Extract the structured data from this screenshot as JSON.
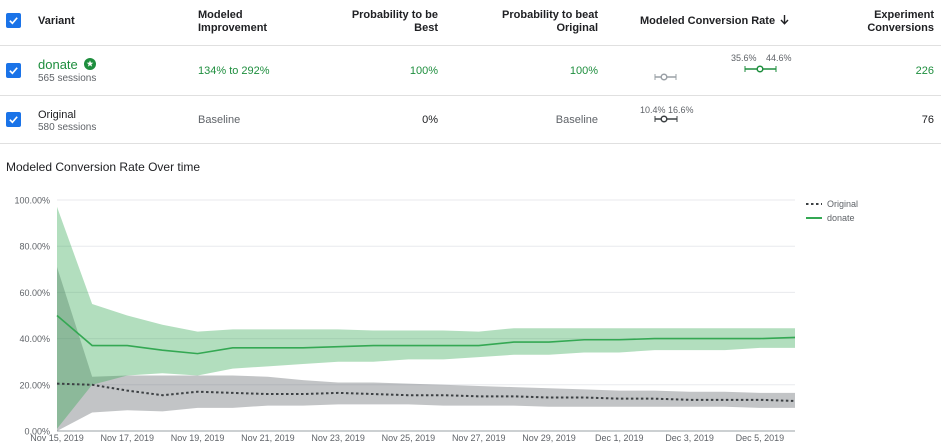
{
  "table": {
    "headers": {
      "variant": "Variant",
      "modeled_improvement_l1": "Modeled",
      "modeled_improvement_l2": "Improvement",
      "prob_best_l1": "Probability to be",
      "prob_best_l2": "Best",
      "prob_beat_l1": "Probability to beat",
      "prob_beat_l2": "Original",
      "modeled_rate": "Modeled Conversion Rate",
      "sort_icon": "arrow-down-icon",
      "conversions_l1": "Experiment",
      "conversions_l2": "Conversions"
    },
    "rows": [
      {
        "name": "donate",
        "sessions": "565 sessions",
        "badge_icon": "star-badge-icon",
        "improvement": "134% to 292%",
        "prob_best": "100%",
        "prob_beat": "100%",
        "ci_low": "35.6%",
        "ci_high": "44.6%",
        "conversions": "226"
      },
      {
        "name": "Original",
        "sessions": "580 sessions",
        "improvement": "Baseline",
        "prob_best": "0%",
        "prob_beat": "Baseline",
        "ci_low": "10.4%",
        "ci_high": "16.6%",
        "conversions": "76"
      }
    ]
  },
  "colors": {
    "accent_blue": "#1a73e8",
    "green": "#1e8e3e",
    "grey": "#5f6368"
  },
  "chart_data": {
    "type": "line",
    "title": "Modeled Conversion Rate Over time",
    "x": [
      "Nov 15, 2019",
      "Nov 16, 2019",
      "Nov 17, 2019",
      "Nov 18, 2019",
      "Nov 19, 2019",
      "Nov 20, 2019",
      "Nov 21, 2019",
      "Nov 22, 2019",
      "Nov 23, 2019",
      "Nov 24, 2019",
      "Nov 25, 2019",
      "Nov 26, 2019",
      "Nov 27, 2019",
      "Nov 28, 2019",
      "Nov 29, 2019",
      "Nov 30, 2019",
      "Dec 1, 2019",
      "Dec 2, 2019",
      "Dec 3, 2019",
      "Dec 4, 2019",
      "Dec 5, 2019",
      "Dec 6, 2019"
    ],
    "x_tick_labels": [
      "Nov 15, 2019",
      "Nov 17, 2019",
      "Nov 19, 2019",
      "Nov 21, 2019",
      "Nov 23, 2019",
      "Nov 25, 2019",
      "Nov 27, 2019",
      "Nov 29, 2019",
      "Dec 1, 2019",
      "Dec 3, 2019",
      "Dec 5, 2019"
    ],
    "y_tick_labels": [
      "0.00%",
      "20.00%",
      "40.00%",
      "60.00%",
      "80.00%",
      "100.00%"
    ],
    "ylim": [
      0,
      100
    ],
    "legend_position": "top-right",
    "series": [
      {
        "name": "Original",
        "style": "dotted",
        "color": "#3c4043",
        "values": [
          20.5,
          20,
          17.5,
          15.5,
          17,
          16.5,
          16,
          16,
          16.5,
          16,
          15.5,
          15.5,
          15,
          15,
          14.5,
          14.5,
          14,
          14,
          13.5,
          13.5,
          13.5,
          13
        ],
        "lower": [
          0,
          8,
          9,
          8.5,
          10,
          10,
          11,
          11,
          11.5,
          11.5,
          11.5,
          11,
          11,
          11,
          10.5,
          10.5,
          10.5,
          10.5,
          10.5,
          10.5,
          10,
          10
        ],
        "upper": [
          71,
          23.5,
          24,
          24,
          24,
          24,
          23.5,
          22,
          21,
          21,
          20.5,
          20,
          19.5,
          19,
          18.5,
          18,
          17.5,
          17.5,
          17,
          17,
          16.5,
          16.5
        ]
      },
      {
        "name": "donate",
        "style": "solid",
        "color": "#34a853",
        "values": [
          50,
          37,
          37,
          35,
          33.5,
          36,
          36,
          36,
          36.5,
          37,
          37,
          37,
          37,
          38.5,
          38.5,
          39.5,
          39.5,
          40,
          40,
          40,
          40,
          40.5
        ],
        "lower": [
          1,
          20,
          24,
          25,
          24,
          27,
          28,
          29,
          30,
          30,
          31,
          31,
          32,
          33,
          33,
          34,
          34,
          35,
          35,
          35,
          36,
          36
        ],
        "upper": [
          97,
          55,
          50,
          46,
          43,
          44,
          44,
          44,
          44,
          43.5,
          43.5,
          43.5,
          43,
          44.5,
          44.5,
          44.5,
          44.5,
          44.5,
          44.5,
          44.5,
          44.5,
          44.5
        ]
      }
    ]
  }
}
